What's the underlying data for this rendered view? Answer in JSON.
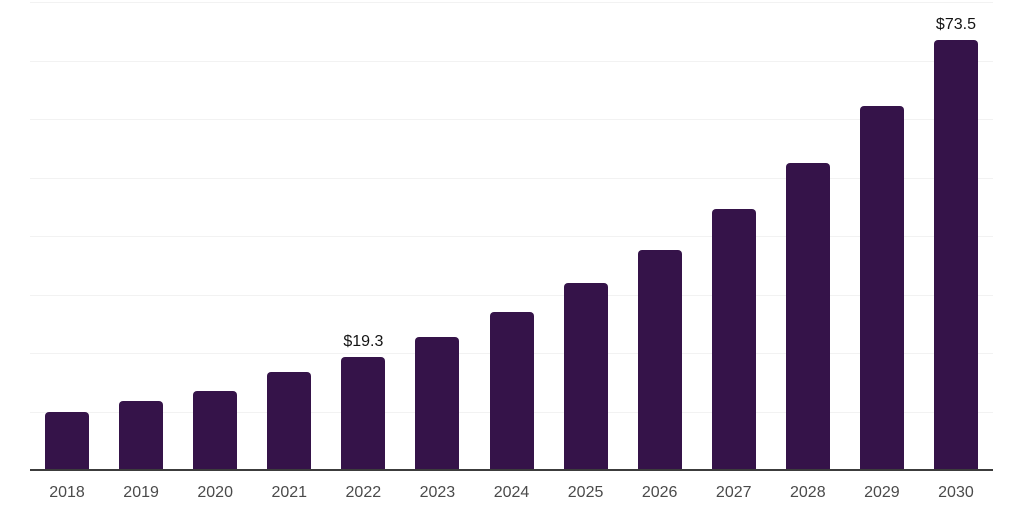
{
  "chart_data": {
    "type": "bar",
    "title": "",
    "xlabel": "",
    "ylabel": "",
    "categories": [
      "2018",
      "2019",
      "2020",
      "2021",
      "2022",
      "2023",
      "2024",
      "2025",
      "2026",
      "2027",
      "2028",
      "2029",
      "2030"
    ],
    "values": [
      10.0,
      11.8,
      13.5,
      16.7,
      19.3,
      22.7,
      27.0,
      31.9,
      37.6,
      44.6,
      52.4,
      62.3,
      73.5
    ],
    "annotations": [
      {
        "category": "2022",
        "text": "$19.3"
      },
      {
        "category": "2030",
        "text": "$73.5"
      }
    ],
    "ylim": [
      0,
      80
    ],
    "grid_step": 10,
    "grid": "horizontal-only",
    "legend": "none",
    "y_axis_labels_visible": false,
    "colors": {
      "bar": "#351349",
      "gridline": "#f2f2f2",
      "axis": "#3c3c3c",
      "tick_label": "#4a4a4a",
      "data_label": "#141414",
      "background": "#ffffff"
    }
  }
}
